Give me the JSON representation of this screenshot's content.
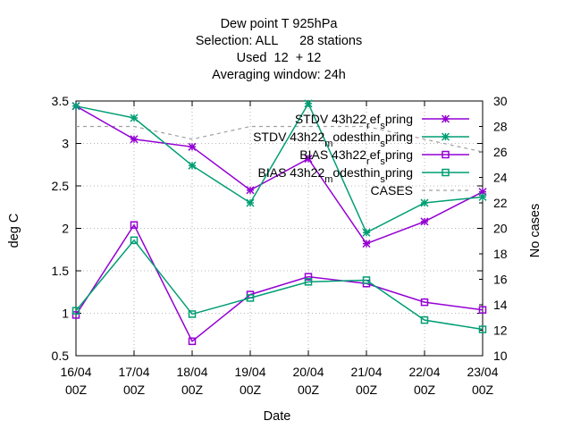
{
  "chart_data": {
    "type": "line",
    "title_lines": [
      "Dew point T 925hPa",
      "Selection: ALL      28 stations",
      "Used  12  + 12",
      "Averaging window: 24h"
    ],
    "xlabel": "Date",
    "ylabel": "deg C",
    "y2label": "No cases",
    "x": [
      "16/04 00Z",
      "17/04 00Z",
      "18/04 00Z",
      "19/04 00Z",
      "20/04 00Z",
      "21/04 00Z",
      "22/04 00Z",
      "23/04 00Z"
    ],
    "x_tick_labels": [
      [
        "16/04",
        "00Z"
      ],
      [
        "17/04",
        "00Z"
      ],
      [
        "18/04",
        "00Z"
      ],
      [
        "19/04",
        "00Z"
      ],
      [
        "20/04",
        "00Z"
      ],
      [
        "21/04",
        "00Z"
      ],
      [
        "22/04",
        "00Z"
      ],
      [
        "23/04",
        "00Z"
      ]
    ],
    "ylim": [
      0.5,
      3.5
    ],
    "y_ticks": [
      "0.5",
      "1",
      "1.5",
      "2",
      "2.5",
      "3",
      "3.5"
    ],
    "y2lim": [
      10,
      30
    ],
    "y2_ticks": [
      "10",
      "12",
      "14",
      "16",
      "18",
      "20",
      "22",
      "24",
      "26",
      "28",
      "30"
    ],
    "legend_position": "top-right",
    "series": [
      {
        "name": "STDV 43h22_ref_spring",
        "legend_parts": [
          "STDV 43h22",
          "r",
          "ef",
          "s",
          "pring"
        ],
        "axis": "y",
        "color": "#9400d3",
        "marker": "star",
        "dash": false,
        "values": [
          3.44,
          3.05,
          2.96,
          2.45,
          2.82,
          1.82,
          2.08,
          2.43
        ]
      },
      {
        "name": "STDV 43h22_modesthin_spring",
        "legend_parts": [
          "STDV 43h22",
          "m",
          "odesthin",
          "s",
          "pring"
        ],
        "axis": "y",
        "color": "#009e73",
        "marker": "star",
        "dash": false,
        "values": [
          3.44,
          3.3,
          2.74,
          2.3,
          3.47,
          1.95,
          2.3,
          2.37
        ]
      },
      {
        "name": "BIAS 43h22_ref_spring",
        "legend_parts": [
          "BIAS 43h22",
          "r",
          "ef",
          "s",
          "pring"
        ],
        "axis": "y",
        "color": "#9400d3",
        "marker": "square",
        "dash": false,
        "values": [
          0.98,
          2.04,
          0.67,
          1.22,
          1.43,
          1.35,
          1.13,
          1.04
        ]
      },
      {
        "name": "BIAS 43h22_modesthin_spring",
        "legend_parts": [
          "BIAS 43h22",
          "m",
          "odesthin",
          "s",
          "pring"
        ],
        "axis": "y",
        "color": "#009e73",
        "marker": "square",
        "dash": false,
        "values": [
          1.03,
          1.86,
          0.99,
          1.18,
          1.37,
          1.39,
          0.92,
          0.81
        ]
      },
      {
        "name": "CASES",
        "legend_parts": [
          "CASES"
        ],
        "axis": "y2",
        "color": "#a0a0a0",
        "marker": "none",
        "dash": true,
        "values": [
          28,
          28,
          27,
          28,
          28,
          28,
          27,
          26
        ]
      }
    ]
  }
}
